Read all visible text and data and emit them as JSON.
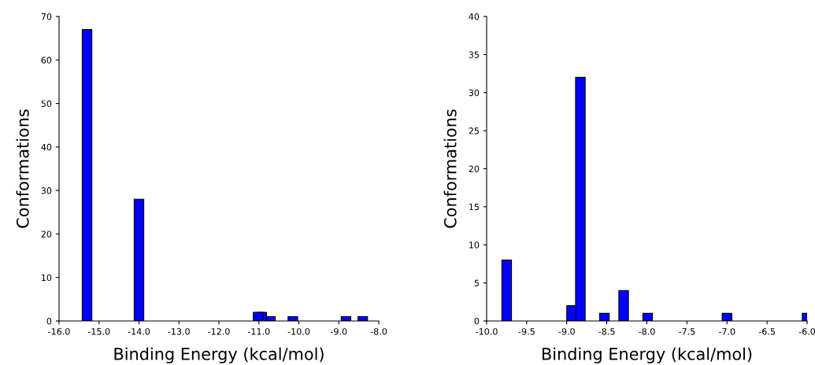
{
  "chart_data": [
    {
      "type": "bar",
      "xlabel": "Binding Energy (kcal/mol)",
      "ylabel": "Conformations",
      "x": [
        -15.3,
        -14.0,
        -11.02,
        -10.93,
        -10.71,
        -10.15,
        -8.82,
        -8.4
      ],
      "series": [
        {
          "color": "#0000ff",
          "values": [
            67,
            28,
            2,
            2,
            1,
            1,
            1,
            1
          ]
        }
      ],
      "xlim": [
        -16,
        -8
      ],
      "xticks": [
        {
          "value": -16,
          "label": "-16.0"
        },
        {
          "value": -15,
          "label": "-15.0"
        },
        {
          "value": -14,
          "label": "-14.0"
        },
        {
          "value": -13,
          "label": "-13.0"
        },
        {
          "value": -12,
          "label": "-12.0"
        },
        {
          "value": -11,
          "label": "-11.0"
        },
        {
          "value": -10,
          "label": "-10.0"
        },
        {
          "value": -9,
          "label": "-9.0"
        },
        {
          "value": -8,
          "label": "-8.0"
        }
      ],
      "ylim": [
        0,
        70
      ],
      "yticks": [
        0,
        10,
        20,
        30,
        40,
        50,
        60,
        70
      ],
      "grid": false,
      "legend": false
    },
    {
      "type": "bar",
      "xlabel": "Binding Energy (kcal/mol)",
      "ylabel": "Conformations",
      "x": [
        -9.75,
        -8.94,
        -8.83,
        -8.53,
        -8.29,
        -7.99,
        -7.0,
        -6.0
      ],
      "series": [
        {
          "color": "#0000ff",
          "values": [
            8,
            2,
            32,
            1,
            4,
            1,
            1,
            1
          ]
        }
      ],
      "xlim": [
        -10,
        -6
      ],
      "xticks": [
        {
          "value": -10,
          "label": "-10.0"
        },
        {
          "value": -9.5,
          "label": "-9.5"
        },
        {
          "value": -9,
          "label": "-9.0"
        },
        {
          "value": -8.5,
          "label": "-8.5"
        },
        {
          "value": -8,
          "label": "-8.0"
        },
        {
          "value": -7.5,
          "label": "-7.5"
        },
        {
          "value": -7,
          "label": "-7.0"
        },
        {
          "value": -6.5,
          "label": "-6.5"
        },
        {
          "value": -6,
          "label": "-6.0"
        }
      ],
      "ylim": [
        0,
        40
      ],
      "yticks": [
        0,
        5,
        10,
        15,
        20,
        25,
        30,
        35,
        40
      ],
      "grid": false,
      "legend": false
    }
  ]
}
